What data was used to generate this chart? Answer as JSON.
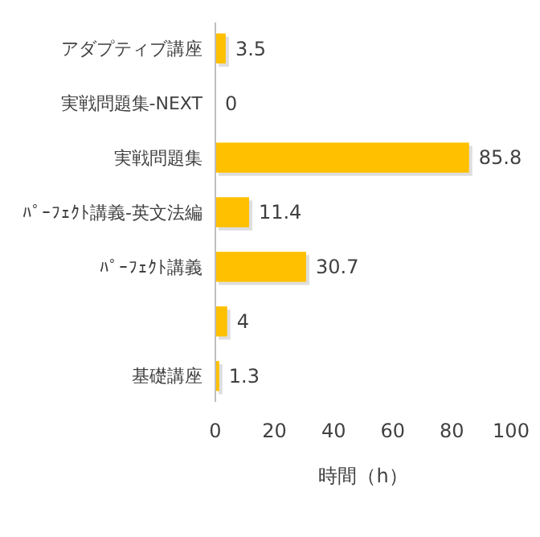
{
  "chart_data": {
    "type": "bar",
    "orientation": "horizontal",
    "xlabel": "時間（h）",
    "categories": [
      "アダプティブ講座",
      "実戦問題集-NEXT",
      "実戦問題集",
      "ﾊﾟｰﾌｪｸﾄ講義-英文法編",
      "ﾊﾟｰﾌｪｸﾄ講義",
      null,
      "基礎講座"
    ],
    "values": [
      3.5,
      0,
      85.8,
      11.4,
      30.7,
      4,
      1.3
    ],
    "color": "#ffc000",
    "xlim": [
      0,
      100
    ],
    "xticks": [
      0,
      20,
      40,
      60,
      80,
      100
    ],
    "data_labels": true
  }
}
